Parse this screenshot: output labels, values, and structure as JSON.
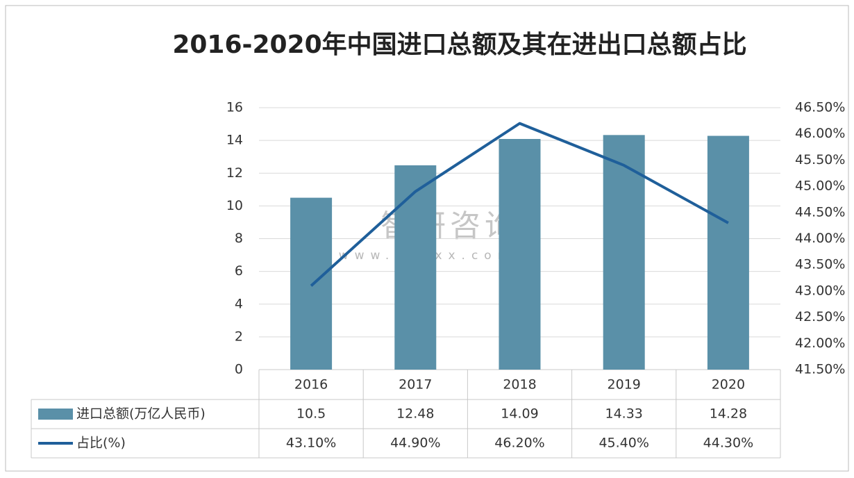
{
  "chart_data": {
    "type": "bar-line-table",
    "title": "2016-2020年中国进口总额及其在进出口总额占比",
    "watermark": "智研咨询",
    "watermark_url": "www.chyxx.com",
    "categories": [
      "2016",
      "2017",
      "2018",
      "2019",
      "2020"
    ],
    "series": [
      {
        "name": "进口总额(万亿人民币)",
        "type": "bar",
        "color": "#5a90a8",
        "values": [
          10.5,
          12.48,
          14.09,
          14.33,
          14.28
        ]
      },
      {
        "name": "占比(%)",
        "type": "line",
        "axis": "y2",
        "color": "#1f5f9a",
        "values": [
          43.1,
          44.9,
          46.2,
          45.4,
          44.3
        ],
        "value_labels": [
          "43.10%",
          "44.90%",
          "46.20%",
          "45.40%",
          "44.30%"
        ]
      }
    ],
    "ylim": [
      0,
      16
    ],
    "yticks": [
      0,
      2,
      4,
      6,
      8,
      10,
      12,
      14,
      16
    ],
    "y2lim": [
      41.5,
      46.5
    ],
    "y2ticks": [
      {
        "value": 41.5,
        "label": "41.50%"
      },
      {
        "value": 42,
        "label": "42.00%"
      },
      {
        "value": 42.5,
        "label": "42.50%"
      },
      {
        "value": 43,
        "label": "43.00%"
      },
      {
        "value": 43.5,
        "label": "43.50%"
      },
      {
        "value": 44,
        "label": "44.00%"
      },
      {
        "value": 44.5,
        "label": "44.50%"
      },
      {
        "value": 45,
        "label": "45.00%"
      },
      {
        "value": 45.5,
        "label": "45.50%"
      },
      {
        "value": 46,
        "label": "46.00%"
      },
      {
        "value": 46.5,
        "label": "46.50%"
      }
    ],
    "grid": true
  }
}
